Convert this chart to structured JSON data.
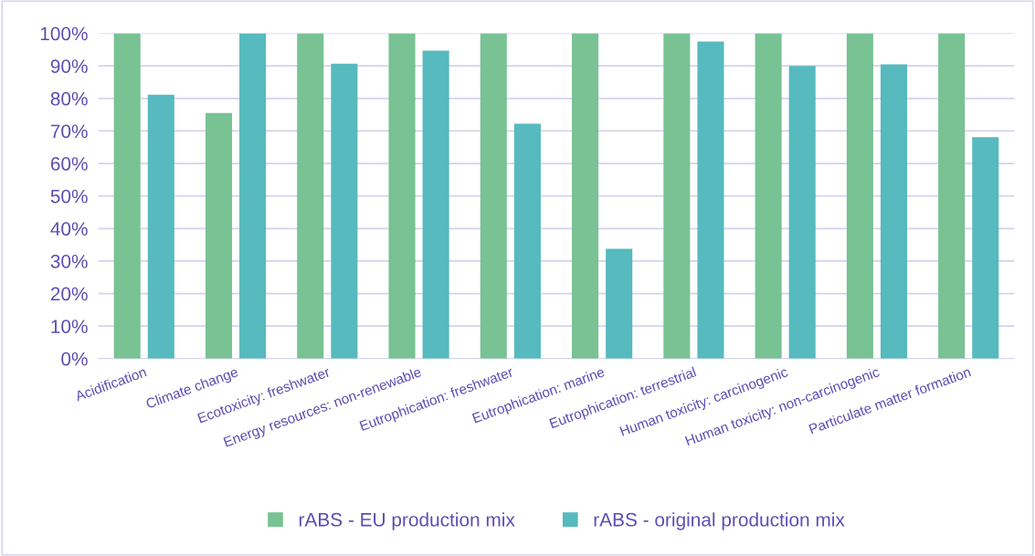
{
  "chart_data": {
    "type": "bar",
    "categories": [
      "Acidification",
      "Climate change",
      "Ecotoxicity: freshwater",
      "Energy resources: non-renewable",
      "Eutrophication: freshwater",
      "Eutrophication: marine",
      "Eutrophication: terrestrial",
      "Human toxicity: carcinogenic",
      "Human toxicity: non-carcinogenic",
      "Particulate matter formation"
    ],
    "series": [
      {
        "name": "rABS - EU production mix",
        "color": "#78c294",
        "values": [
          100,
          75.5,
          100,
          100,
          100,
          100,
          100,
          100,
          100,
          100
        ]
      },
      {
        "name": "rABS - original production mix",
        "color": "#56babe",
        "values": [
          81.1,
          100,
          90.7,
          94.7,
          72.2,
          33.8,
          97.5,
          90.0,
          90.5,
          68.1
        ]
      }
    ],
    "ylim": [
      0,
      100
    ],
    "yticks": [
      {
        "value": 0,
        "label": "0%"
      },
      {
        "value": 10,
        "label": "10%"
      },
      {
        "value": 20,
        "label": "20%"
      },
      {
        "value": 30,
        "label": "30%"
      },
      {
        "value": 40,
        "label": "40%"
      },
      {
        "value": 50,
        "label": "50%"
      },
      {
        "value": 60,
        "label": "60%"
      },
      {
        "value": 70,
        "label": "70%"
      },
      {
        "value": 80,
        "label": "80%"
      },
      {
        "value": 90,
        "label": "90%"
      },
      {
        "value": 100,
        "label": "100%"
      }
    ],
    "grid": "y",
    "legend": "bottom"
  }
}
